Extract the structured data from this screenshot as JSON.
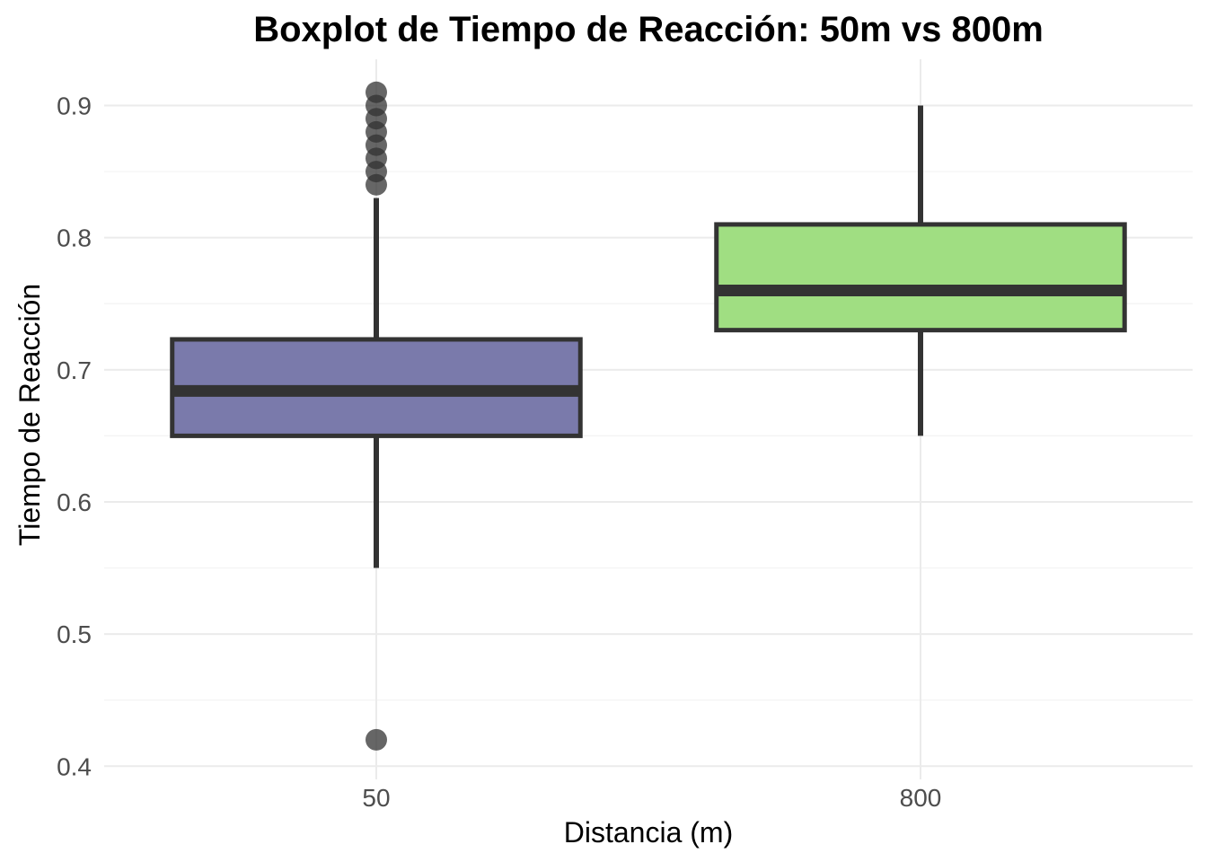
{
  "chart_data": {
    "type": "box",
    "title": "Boxplot de Tiempo de Reacción: 50m vs 800m",
    "xlabel": "Distancia (m)",
    "ylabel": "Tiempo de Reacción",
    "categories": [
      "50",
      "800"
    ],
    "ylim": [
      0.39,
      0.935
    ],
    "yticks": [
      0.4,
      0.5,
      0.6,
      0.7,
      0.8,
      0.9
    ],
    "ytick_labels": [
      "0.4",
      "0.5",
      "0.6",
      "0.7",
      "0.8",
      "0.9"
    ],
    "grid": true,
    "legend": "none",
    "boxes": [
      {
        "category": "50",
        "whisker_low": 0.55,
        "q1": 0.65,
        "median": 0.684,
        "q3": 0.723,
        "whisker_high": 0.83,
        "outliers": [
          0.42,
          0.84,
          0.85,
          0.86,
          0.87,
          0.88,
          0.89,
          0.9,
          0.91
        ],
        "fill": "#7a7aab"
      },
      {
        "category": "800",
        "whisker_low": 0.65,
        "q1": 0.73,
        "median": 0.76,
        "q3": 0.81,
        "whisker_high": 0.9,
        "outliers": [],
        "fill": "#a0de82"
      }
    ],
    "colors": {
      "box_outline": "#333333",
      "outlier": "#333333",
      "grid": "#ebebeb"
    }
  }
}
